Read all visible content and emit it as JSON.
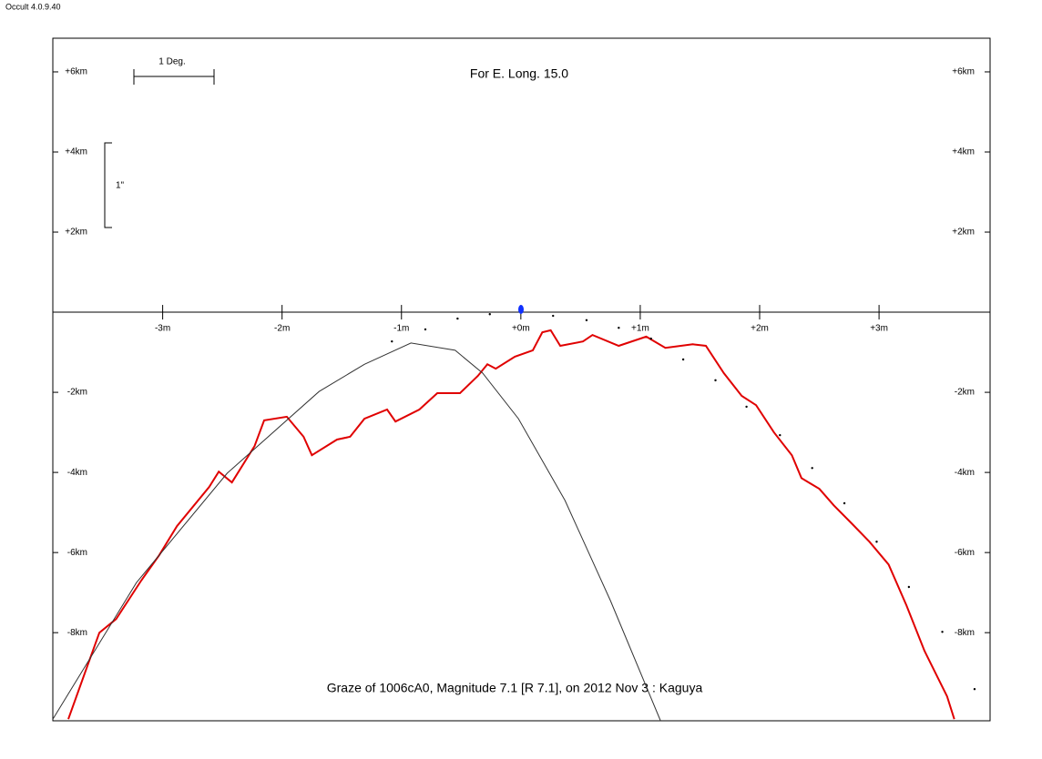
{
  "app_label": "Occult 4.0.9.40",
  "chart_data": {
    "type": "line",
    "title": "For E. Long. 15.0",
    "caption": "Graze of  1006cA0,  Magnitude 7.1 [R 7.1],  on 2012 Nov  3  :  Kaguya",
    "scale_label_x": "1 Deg.",
    "scale_label_y": "1\"",
    "xlim": [
      -3.92,
      3.93
    ],
    "ylim": [
      -10.2,
      6.84
    ],
    "xticks": [
      {
        "value": -3,
        "label": "-3m"
      },
      {
        "value": -2,
        "label": "-2m"
      },
      {
        "value": -1,
        "label": "-1m"
      },
      {
        "value": 0,
        "label": "+0m"
      },
      {
        "value": 1,
        "label": "+1m"
      },
      {
        "value": 2,
        "label": "+2m"
      },
      {
        "value": 3,
        "label": "+3m"
      }
    ],
    "yticks": [
      {
        "value": 6,
        "label": "+6km"
      },
      {
        "value": 4,
        "label": "+4km"
      },
      {
        "value": 2,
        "label": "+2km"
      },
      {
        "value": -2,
        "label": "-2km"
      },
      {
        "value": -4,
        "label": "-4km"
      },
      {
        "value": -6,
        "label": "-6km"
      },
      {
        "value": -8,
        "label": "-8km"
      }
    ],
    "series": [
      {
        "color": "#e00000",
        "style": "line",
        "x": [
          -3.79,
          -3.64,
          -3.53,
          -3.39,
          -3.18,
          -3.03,
          -2.88,
          -2.61,
          -2.53,
          -2.42,
          -2.23,
          -2.15,
          -1.96,
          -1.82,
          -1.75,
          -1.54,
          -1.43,
          -1.31,
          -1.12,
          -1.05,
          -0.85,
          -0.7,
          -0.51,
          -0.36,
          -0.28,
          -0.21,
          -0.05,
          0.1,
          0.18,
          0.25,
          0.33,
          0.52,
          0.6,
          0.82,
          1.05,
          1.21,
          1.44,
          1.55,
          1.7,
          1.85,
          1.97,
          2.12,
          2.27,
          2.35,
          2.5,
          2.62,
          2.77,
          2.92,
          3.08,
          3.23,
          3.38,
          3.57,
          3.63
        ],
        "values": [
          -10.16,
          -8.91,
          -8.0,
          -7.66,
          -6.7,
          -6.07,
          -5.34,
          -4.36,
          -3.98,
          -4.25,
          -3.34,
          -2.7,
          -2.61,
          -3.11,
          -3.57,
          -3.18,
          -3.11,
          -2.66,
          -2.43,
          -2.73,
          -2.43,
          -2.02,
          -2.02,
          -1.59,
          -1.3,
          -1.41,
          -1.11,
          -0.95,
          -0.5,
          -0.45,
          -0.84,
          -0.73,
          -0.57,
          -0.84,
          -0.61,
          -0.89,
          -0.8,
          -0.84,
          -1.52,
          -2.09,
          -2.32,
          -3.0,
          -3.57,
          -4.14,
          -4.41,
          -4.82,
          -5.27,
          -5.73,
          -6.3,
          -7.32,
          -8.45,
          -9.59,
          -10.16
        ]
      },
      {
        "color": "#333333",
        "style": "curve",
        "x": [
          -3.92,
          -3.22,
          -2.46,
          -1.69,
          -1.31,
          -0.92,
          -0.55,
          -0.32,
          -0.02,
          0.37,
          0.75,
          1.17
        ],
        "values": [
          -10.16,
          -6.75,
          -4.02,
          -1.98,
          -1.3,
          -0.77,
          -0.95,
          -1.52,
          -2.66,
          -4.7,
          -7.2,
          -10.2
        ]
      },
      {
        "color": "#000000",
        "style": "dots",
        "x": [
          -1.08,
          -0.8,
          -0.53,
          -0.26,
          0.27,
          0.55,
          0.82,
          1.09,
          1.36,
          1.63,
          1.89,
          2.17,
          2.44,
          2.71,
          2.98,
          3.25,
          3.53,
          3.8
        ],
        "values": [
          -0.73,
          -0.43,
          -0.16,
          -0.05,
          -0.09,
          -0.2,
          -0.39,
          -0.66,
          -1.18,
          -1.7,
          -2.36,
          -3.07,
          -3.89,
          -4.77,
          -5.73,
          -6.86,
          -7.98,
          -9.41
        ]
      }
    ]
  }
}
